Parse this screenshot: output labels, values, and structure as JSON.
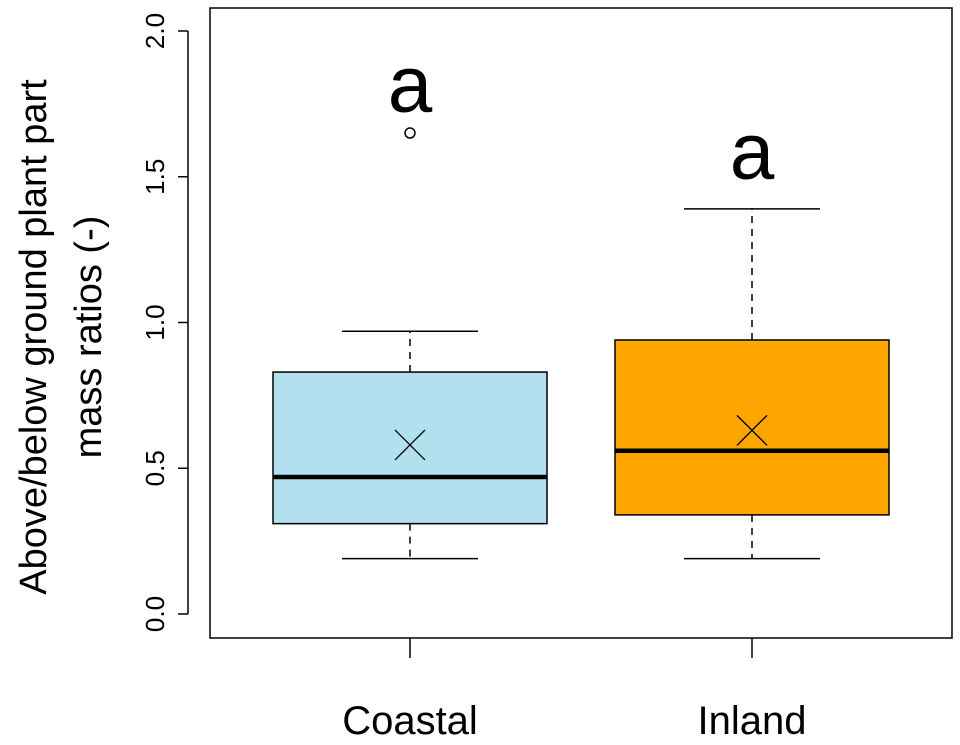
{
  "chart_data": {
    "type": "boxplot",
    "title": "",
    "xlabel": "",
    "ylabel_lines": [
      "Above/below ground plant part",
      "mass ratios (-)"
    ],
    "ylim": [
      0,
      2.0
    ],
    "yticks": [
      0.0,
      0.5,
      1.0,
      1.5,
      2.0
    ],
    "ytick_labels": [
      "0.0",
      "0.5",
      "1.0",
      "1.5",
      "2.0"
    ],
    "grid": false,
    "legend": "none",
    "categories": [
      "Coastal",
      "Inland"
    ],
    "series": [
      {
        "category": "Coastal",
        "color": "#b3e0ef",
        "whisker_low": 0.19,
        "q1": 0.31,
        "median": 0.47,
        "q3": 0.83,
        "whisker_high": 0.97,
        "mean": 0.58,
        "outliers": [
          1.65
        ],
        "significance_letter": "a",
        "letter_y": 1.8
      },
      {
        "category": "Inland",
        "color": "#ffa500",
        "whisker_low": 0.19,
        "q1": 0.34,
        "median": 0.56,
        "q3": 0.94,
        "whisker_high": 1.39,
        "mean": 0.63,
        "outliers": [],
        "significance_letter": "a",
        "letter_y": 1.57
      }
    ]
  }
}
